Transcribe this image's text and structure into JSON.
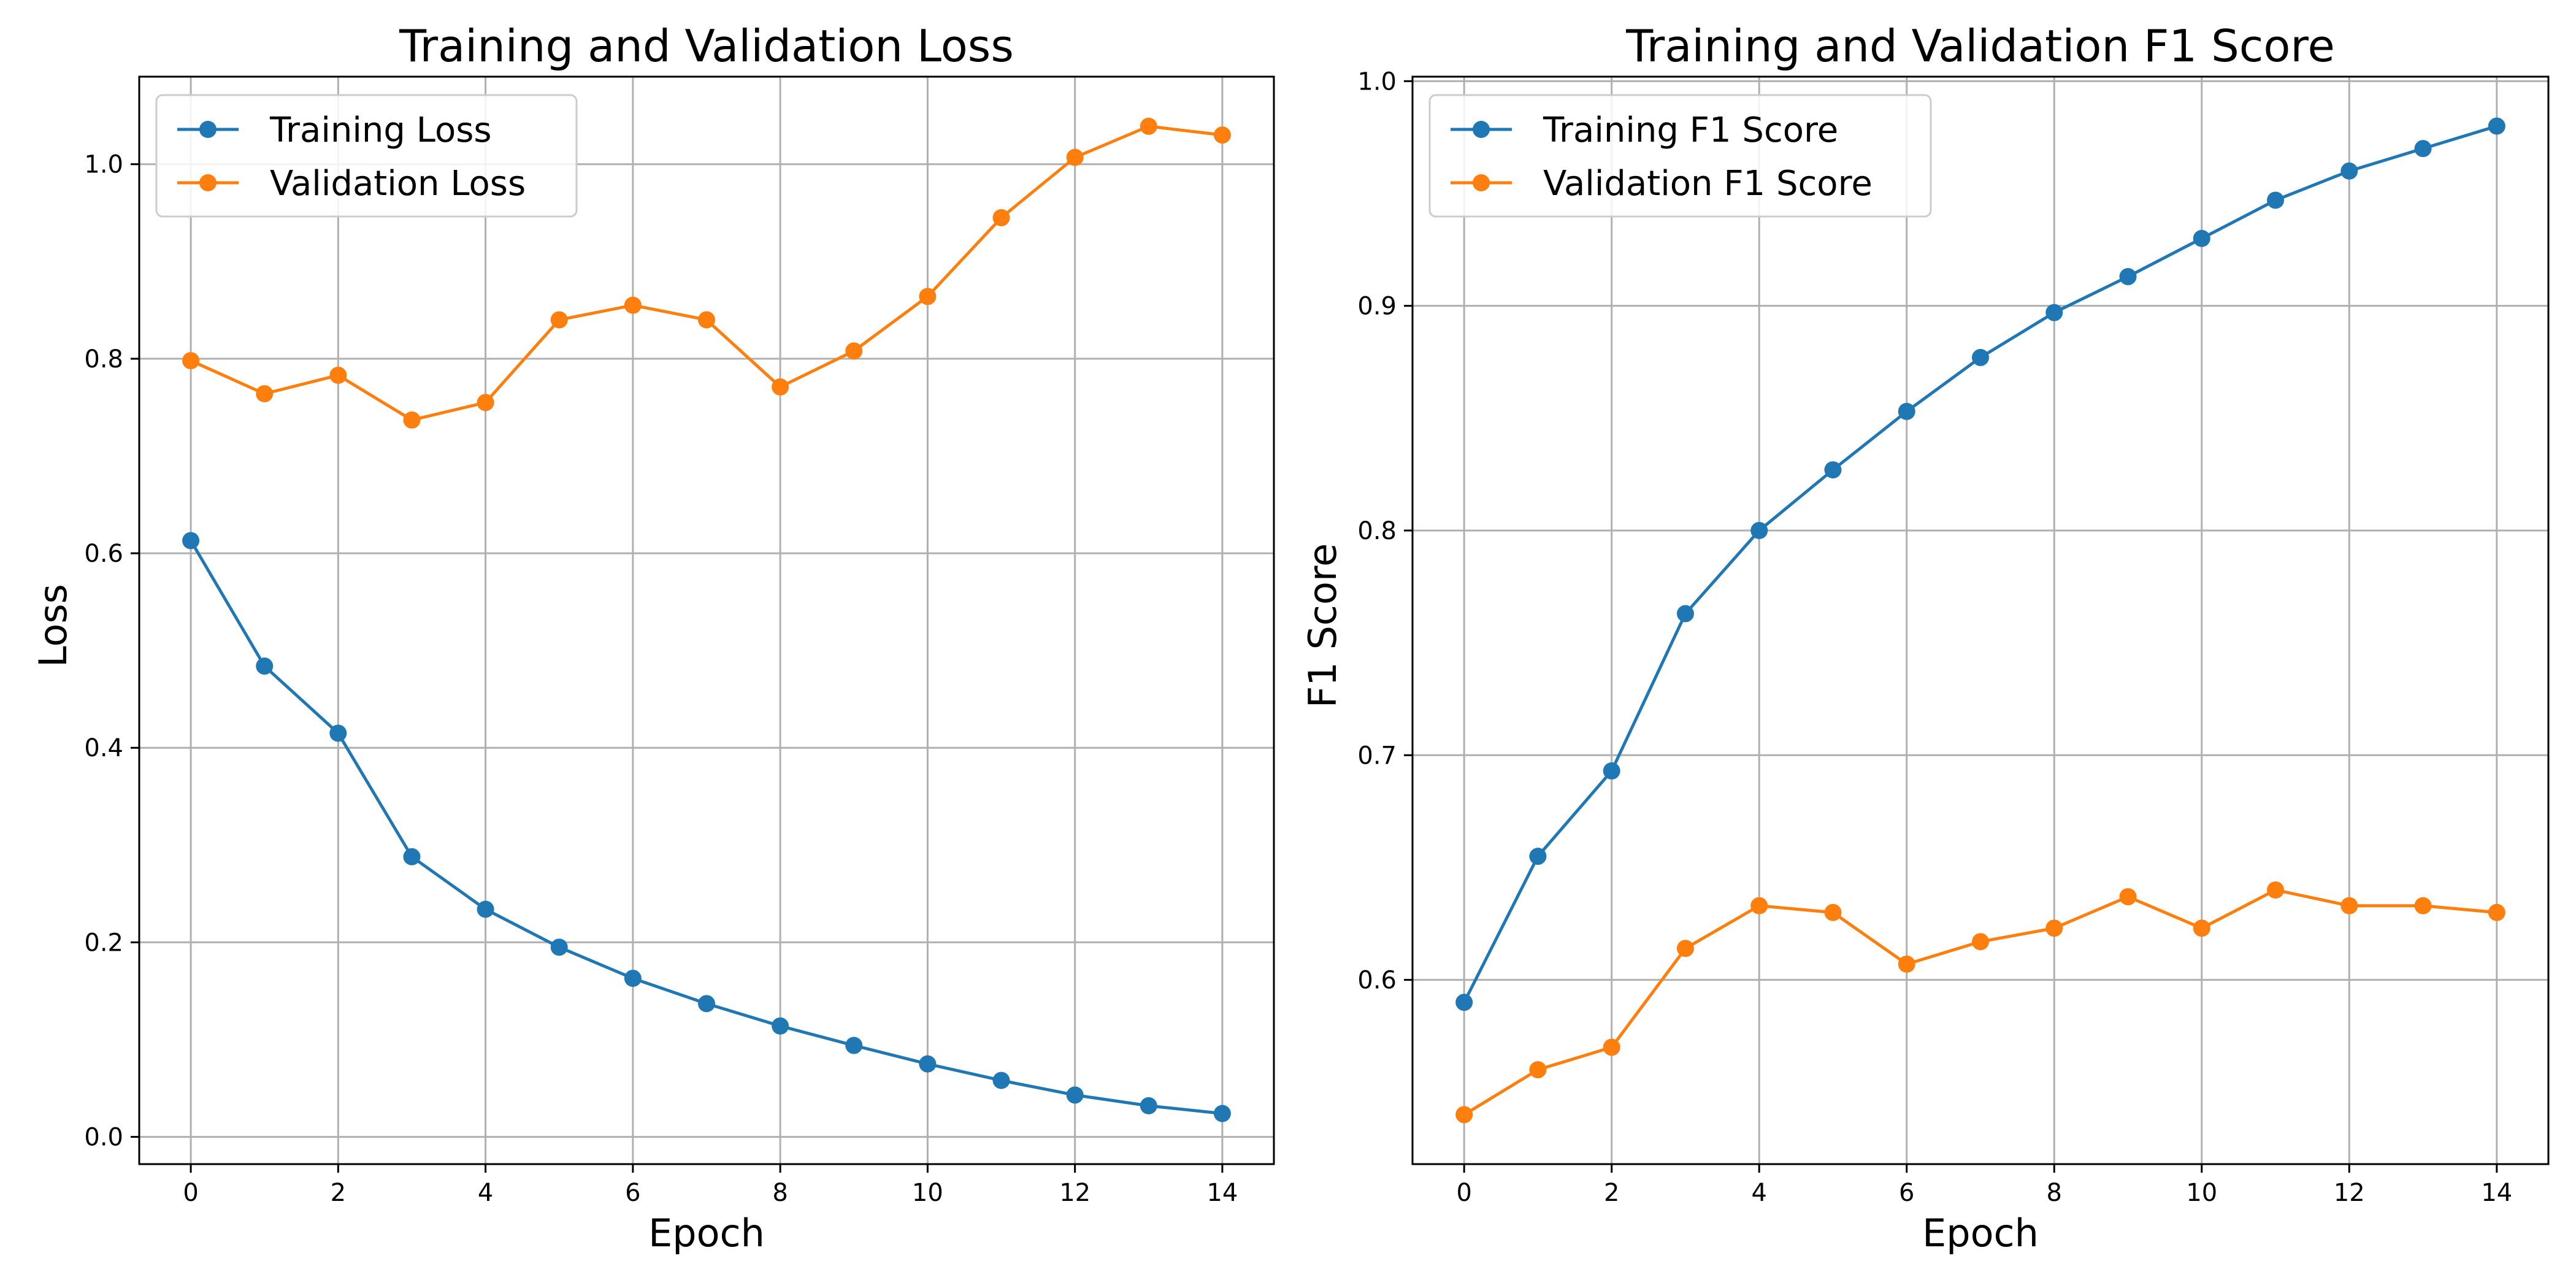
{
  "figure": {
    "background": "#ffffff",
    "grid_color": "#b0b0b0"
  },
  "chart_data": [
    {
      "type": "line",
      "title": "Training and Validation Loss",
      "xlabel": "Epoch",
      "ylabel": "Loss",
      "xlim": [
        -0.7,
        14.7
      ],
      "ylim": [
        -0.028,
        1.09
      ],
      "xticks": [
        0,
        2,
        4,
        6,
        8,
        10,
        12,
        14
      ],
      "xtick_labels": [
        "0",
        "2",
        "4",
        "6",
        "8",
        "10",
        "12",
        "14"
      ],
      "yticks": [
        0.0,
        0.2,
        0.4,
        0.6,
        0.8,
        1.0
      ],
      "ytick_labels": [
        "0.0",
        "0.2",
        "0.4",
        "0.6",
        "0.8",
        "1.0"
      ],
      "grid": true,
      "legend": "top-left",
      "x": [
        0,
        1,
        2,
        3,
        4,
        5,
        6,
        7,
        8,
        9,
        10,
        11,
        12,
        13,
        14
      ],
      "series": [
        {
          "name": "Training Loss",
          "color": "#1f77b4",
          "values": [
            0.613,
            0.484,
            0.415,
            0.288,
            0.234,
            0.195,
            0.163,
            0.137,
            0.114,
            0.094,
            0.075,
            0.058,
            0.043,
            0.032,
            0.024
          ]
        },
        {
          "name": "Validation Loss",
          "color": "#ff7f0e",
          "values": [
            0.798,
            0.764,
            0.783,
            0.737,
            0.755,
            0.84,
            0.855,
            0.84,
            0.771,
            0.808,
            0.864,
            0.945,
            1.007,
            1.039,
            1.03
          ]
        }
      ]
    },
    {
      "type": "line",
      "title": "Training and Validation F1 Score",
      "xlabel": "Epoch",
      "ylabel": "F1 Score",
      "xlim": [
        -0.7,
        14.7
      ],
      "ylim": [
        0.518,
        1.002
      ],
      "xticks": [
        0,
        2,
        4,
        6,
        8,
        10,
        12,
        14
      ],
      "xtick_labels": [
        "0",
        "2",
        "4",
        "6",
        "8",
        "10",
        "12",
        "14"
      ],
      "yticks": [
        0.6,
        0.7,
        0.8,
        0.9,
        1.0
      ],
      "ytick_labels": [
        "0.6",
        "0.7",
        "0.8",
        "0.9",
        "1.0"
      ],
      "grid": true,
      "legend": "top-left",
      "x": [
        0,
        1,
        2,
        3,
        4,
        5,
        6,
        7,
        8,
        9,
        10,
        11,
        12,
        13,
        14
      ],
      "series": [
        {
          "name": "Training F1 Score",
          "color": "#1f77b4",
          "values": [
            0.59,
            0.655,
            0.693,
            0.763,
            0.8,
            0.827,
            0.853,
            0.877,
            0.897,
            0.913,
            0.93,
            0.947,
            0.96,
            0.97,
            0.98
          ]
        },
        {
          "name": "Validation F1 Score",
          "color": "#ff7f0e",
          "values": [
            0.54,
            0.56,
            0.57,
            0.614,
            0.633,
            0.63,
            0.607,
            0.617,
            0.623,
            0.637,
            0.623,
            0.64,
            0.633,
            0.633,
            0.63
          ]
        }
      ]
    }
  ]
}
